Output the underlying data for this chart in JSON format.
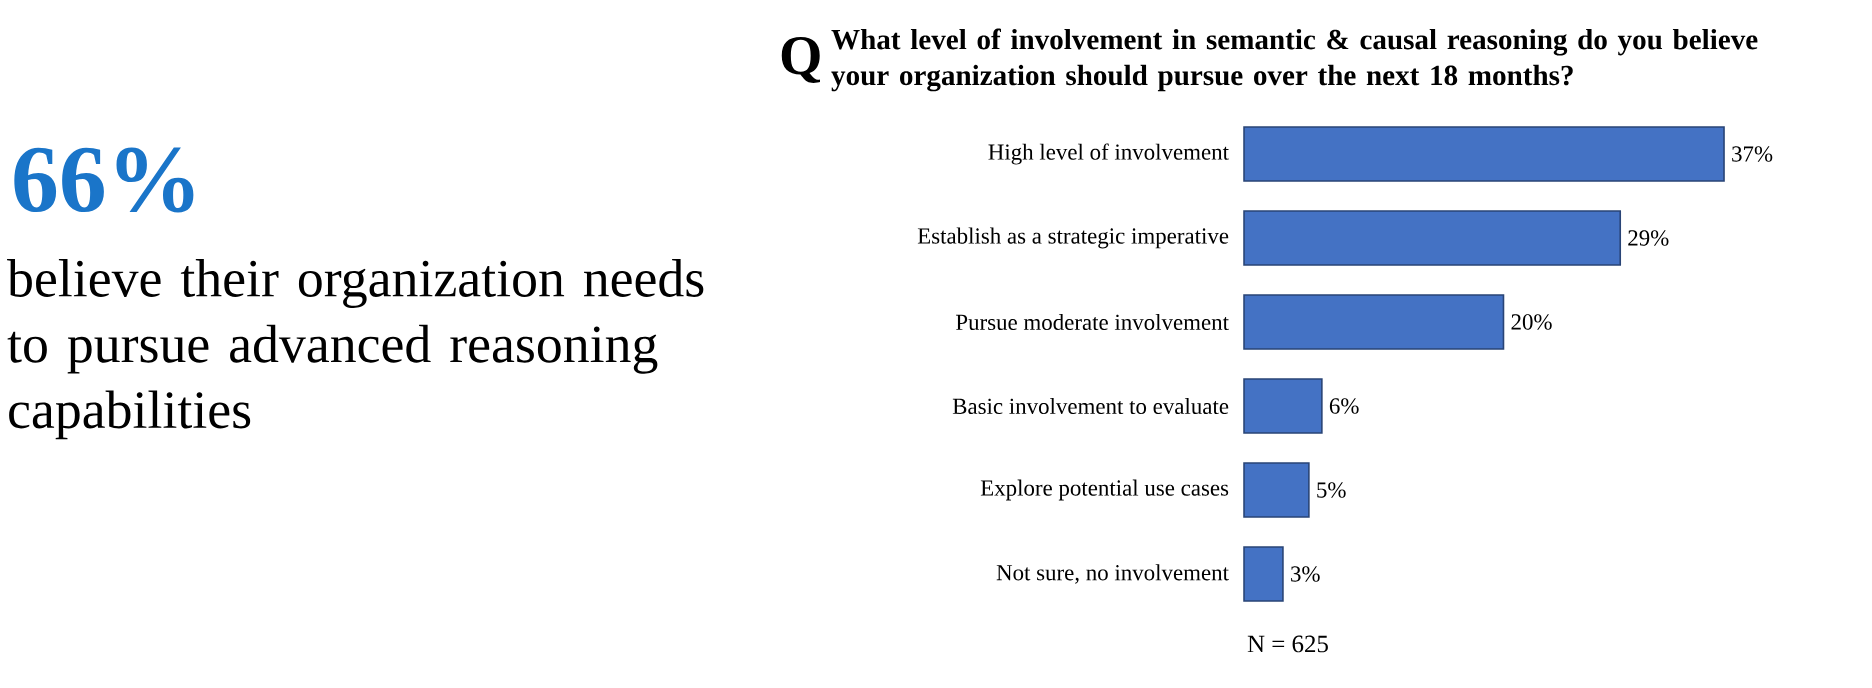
{
  "chart_data": {
    "type": "bar",
    "orientation": "horizontal",
    "title": "What level of involvement in semantic & causal reasoning do you believe your organization should pursue over the next 18 months?",
    "categories": [
      "High level of involvement",
      "Establish as a strategic imperative",
      "Pursue moderate involvement",
      "Basic involvement to evaluate",
      "Explore potential use cases",
      "Not sure, no involvement"
    ],
    "values": [
      37,
      29,
      20,
      6,
      5,
      3
    ],
    "value_labels": [
      "37%",
      "29%",
      "20%",
      "6%",
      "5%",
      "3%"
    ],
    "color": "#4472c4",
    "tick_labels": "y",
    "annotations": [
      "Q",
      "66%",
      "believe their organization needs to pursue advanced reasoning capabilities",
      "N = 625"
    ]
  }
}
